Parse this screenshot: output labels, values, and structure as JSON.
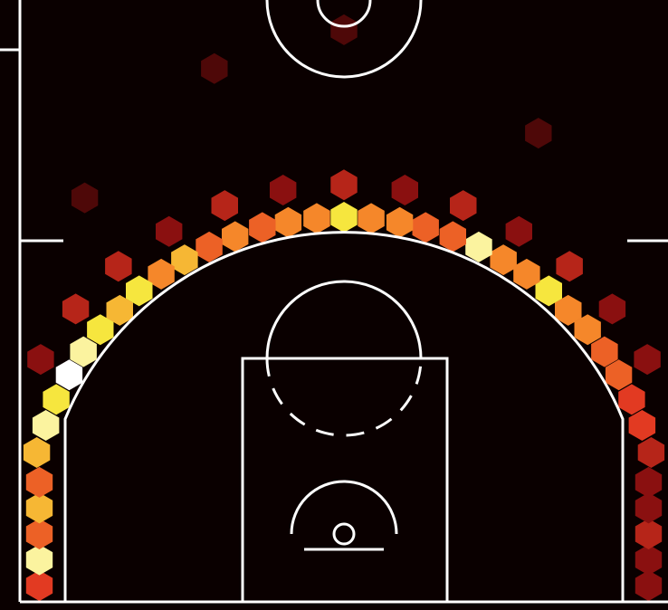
{
  "chart_data": {
    "type": "hexbin",
    "x": [
      23.7,
      23.0,
      22.2,
      21.2,
      20.1,
      18.8,
      17.3,
      15.8,
      14.1,
      12.3,
      10.4,
      8.4,
      6.3,
      4.3,
      2.1,
      0,
      -2.1,
      -4.3,
      -6.3,
      -8.4,
      -10.4,
      -12.3,
      -14.1,
      -15.8,
      -17.3,
      -18.8,
      -20.1,
      -21.2,
      -22.2,
      -23.0,
      -23.7,
      23.4,
      20.7,
      17.4,
      13.5,
      9.2,
      4.7,
      0,
      -4.7,
      -9.2,
      -13.5,
      -17.4,
      -20.7,
      -23.4,
      -23.5,
      -23.5,
      -23.5,
      -23.5,
      -23.5,
      23.5,
      23.5,
      23.5,
      23.5,
      23.5,
      -20,
      15,
      0,
      -10
    ],
    "y": [
      6.3,
      8.4,
      10.4,
      12.3,
      14.1,
      15.8,
      17.3,
      18.8,
      20.1,
      21.2,
      22.2,
      23.0,
      23.7,
      24.1,
      24.4,
      24.5,
      24.4,
      24.1,
      23.7,
      23.0,
      22.2,
      21.2,
      20.1,
      18.8,
      17.3,
      15.8,
      14.1,
      12.3,
      10.4,
      8.4,
      6.3,
      13.5,
      17.4,
      20.7,
      23.4,
      25.4,
      26.6,
      27,
      26.6,
      25.4,
      23.4,
      20.7,
      17.4,
      13.5,
      -4,
      -2,
      0,
      2,
      4,
      -4,
      -2,
      0,
      2,
      4,
      26,
      31,
      39,
      36
    ],
    "values": [
      3,
      4,
      4,
      5,
      5,
      6,
      6,
      8,
      6,
      6,
      9,
      5,
      5,
      6,
      6,
      8,
      6,
      6,
      5,
      6,
      5,
      7,
      6,
      8,
      7,
      8,
      9,
      10,
      8,
      9,
      7,
      2,
      2,
      3,
      2,
      3,
      2,
      3,
      2,
      3,
      2,
      3,
      3,
      2,
      4,
      9,
      5,
      7,
      5,
      2,
      2,
      3,
      2,
      2,
      1,
      1,
      1,
      1
    ],
    "xlim": [
      -25,
      25
    ],
    "ylim": [
      -5.25,
      41.3
    ],
    "vmin": 0,
    "vmax": 10,
    "colormap": [
      "#120000",
      "#8a1010",
      "#e23a22",
      "#f5872a",
      "#f6e63e",
      "#ffffff"
    ]
  }
}
